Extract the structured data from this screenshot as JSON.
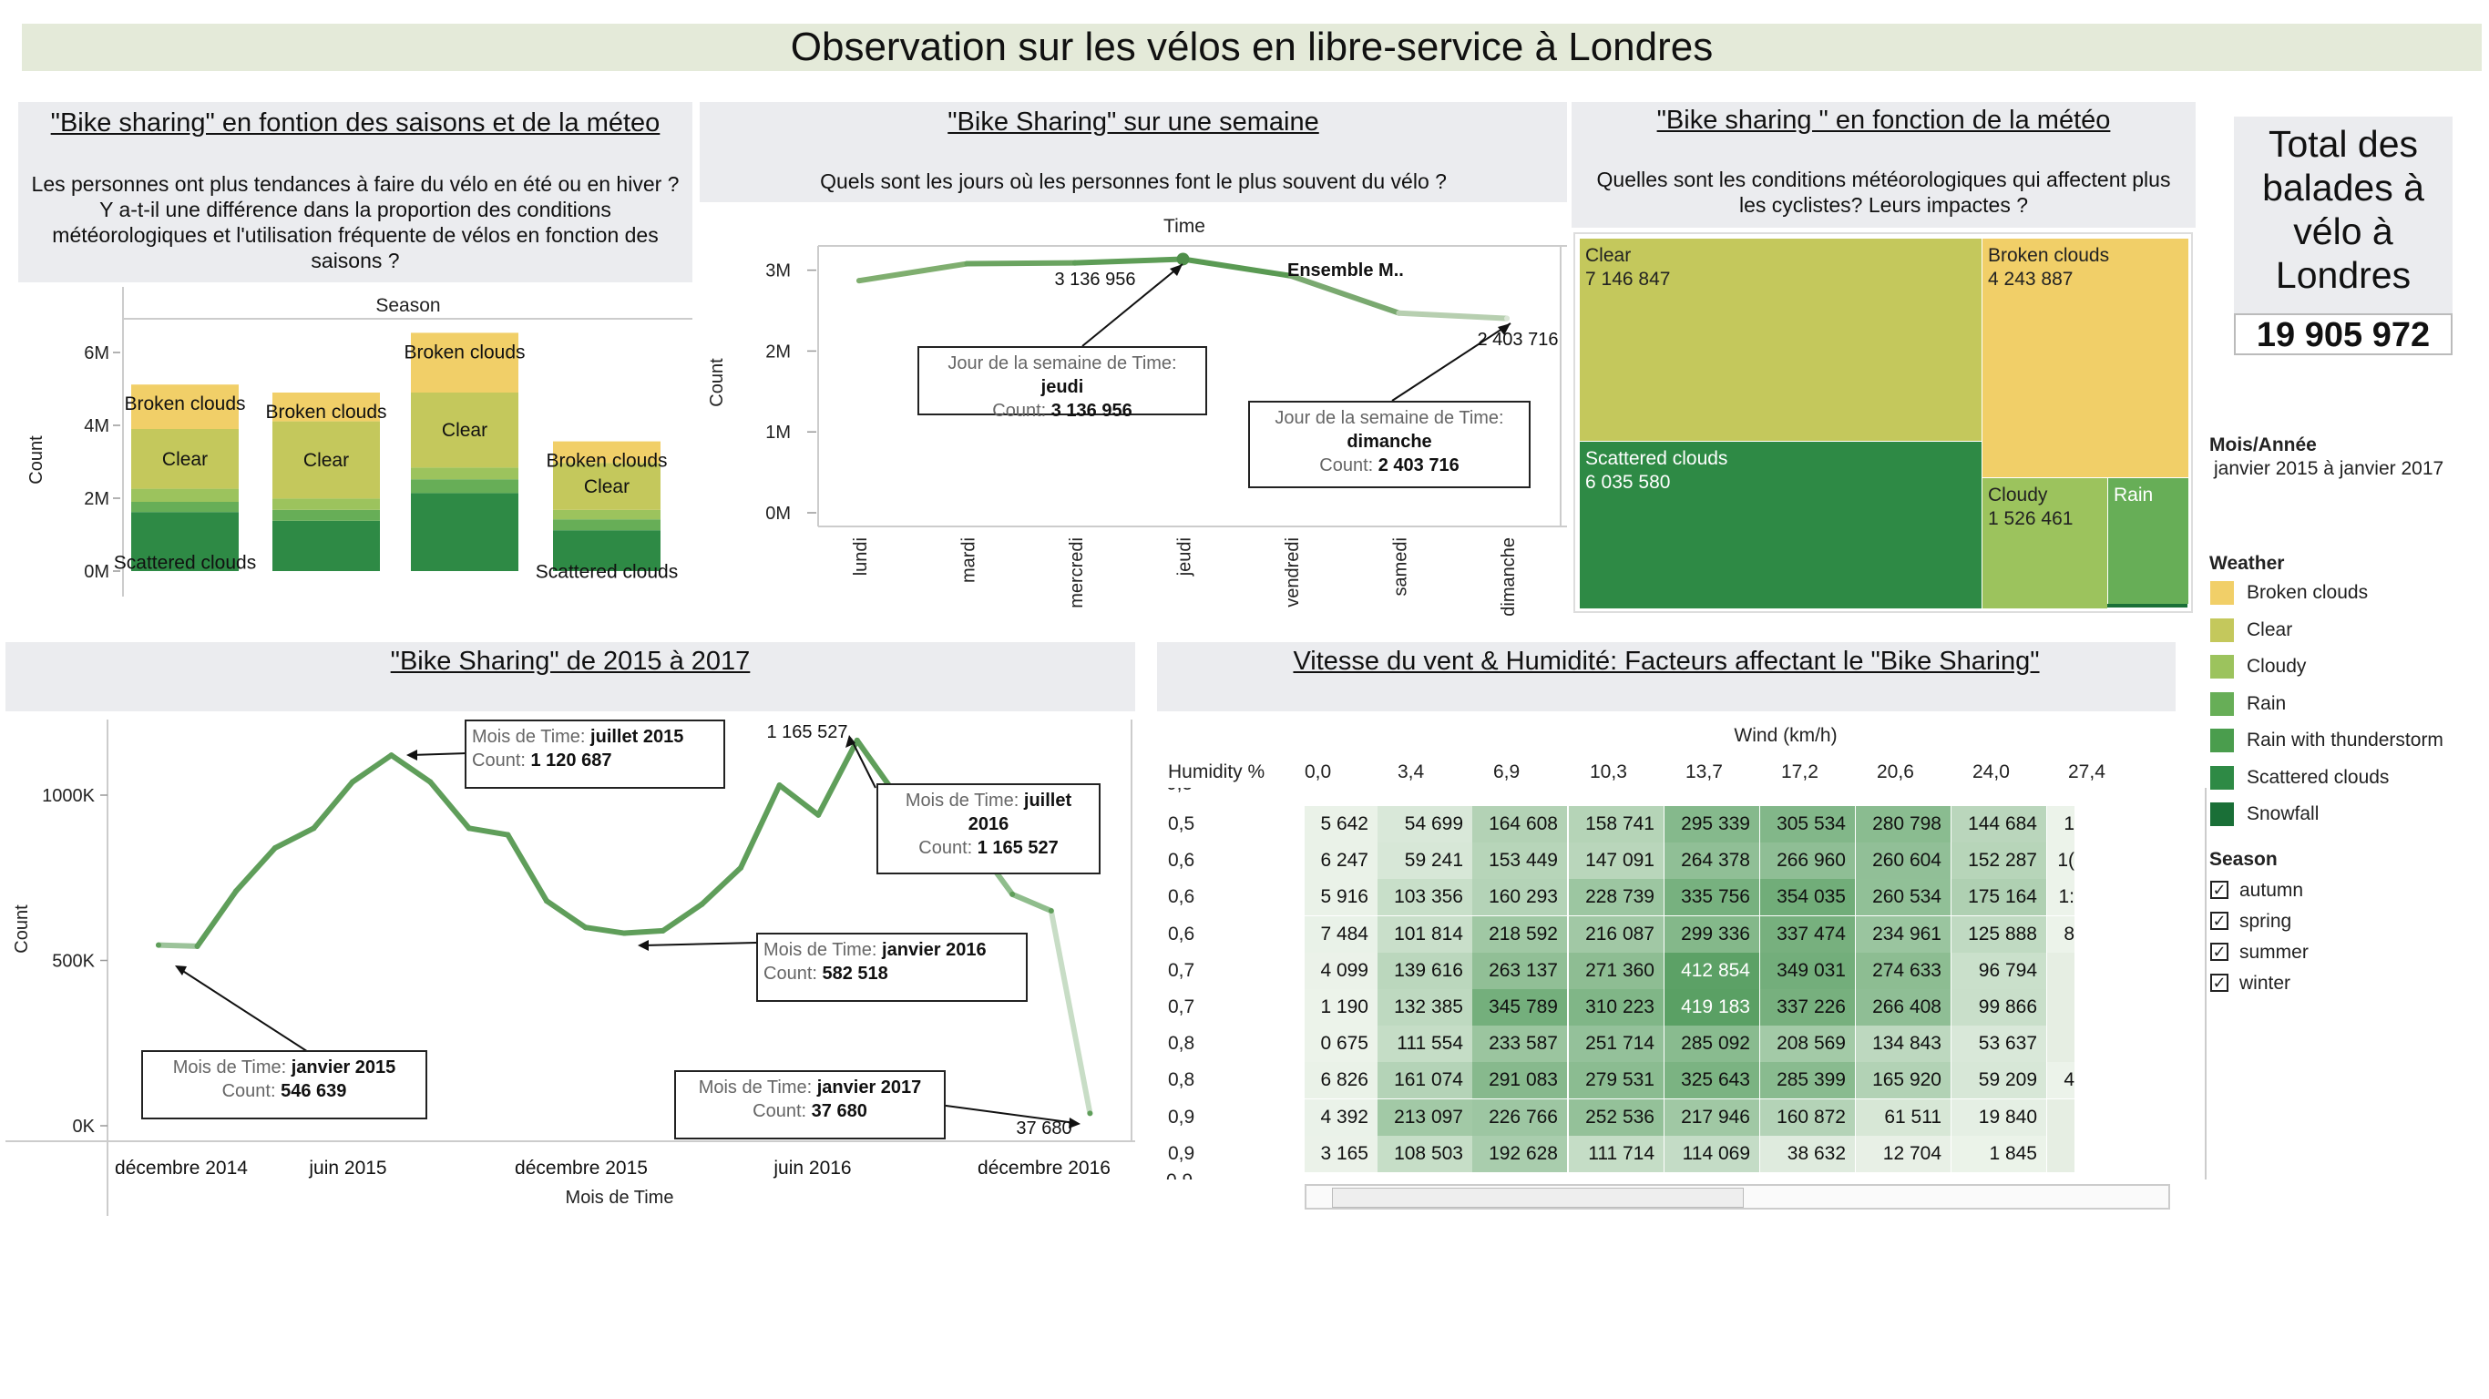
{
  "page_title": "Observation sur les vélos en libre-service à Londres",
  "season_panel": {
    "title": "\"Bike sharing\" en fontion des saisons et de la méteo",
    "question": "Les personnes ont plus tendances à faire du vélo en été ou en hiver ? Y a-t-il une différence dans la proportion des conditions météorologiques et l'utilisation fréquente de vélos en fonction des saisons ?",
    "header": "Season",
    "ylabel": "Count",
    "yticks": [
      "6M",
      "4M",
      "2M",
      "0M"
    ]
  },
  "week_panel": {
    "title": "\"Bike Sharing\" sur une semaine",
    "question": "Quels sont les jours où les personnes font le plus souvent du vélo ?",
    "header": "Time",
    "ylabel": "Count",
    "yticks": [
      "3M",
      "2M",
      "1M",
      "0M"
    ],
    "peak_label": "3 136 956",
    "end_label": "2 403 716",
    "ensemble_label": "Ensemble M..",
    "tip1": {
      "line1": "Jour de la semaine de Time: ",
      "day": "jeudi",
      "line2": "Count: ",
      "value": "3 136 956"
    },
    "tip2": {
      "line1": "Jour de la semaine de Time:",
      "day": "dimanche",
      "line2": "Count: ",
      "value": "2 403 716"
    }
  },
  "weather_panel": {
    "title": "\"Bike sharing \" en fonction de la météo",
    "question": "Quelles sont les conditions météorologiques qui affectent plus les cyclistes? Leurs impactes ?",
    "cells": [
      {
        "label": "Clear",
        "value": "7 146 847"
      },
      {
        "label": "Broken clouds",
        "value": "4 243 887"
      },
      {
        "label": "Scattered clouds",
        "value": "6 035 580"
      },
      {
        "label": "Cloudy",
        "value": "1 526 461"
      },
      {
        "label": "Rain",
        "value": ""
      }
    ]
  },
  "total_panel": {
    "title": "Total des balades à vélo à Londres",
    "value": "19 905 972"
  },
  "filters": {
    "period_title": "Mois/Année",
    "period_value": "janvier 2015 à janvier 2017",
    "weather_title": "Weather",
    "season_title": "Season",
    "seasons": [
      "autumn",
      "spring",
      "summer",
      "winter"
    ],
    "check": "✓"
  },
  "legend": [
    {
      "label": "Broken clouds",
      "color": "#f1cf68"
    },
    {
      "label": "Clear",
      "color": "#c4c85c"
    },
    {
      "label": "Cloudy",
      "color": "#9cc35d"
    },
    {
      "label": "Rain",
      "color": "#67ae57"
    },
    {
      "label": "Rain with thunderstorm",
      "color": "#4a9d4d"
    },
    {
      "label": "Scattered clouds",
      "color": "#2e8a45"
    },
    {
      "label": "Snowfall",
      "color": "#1a6f37"
    }
  ],
  "timeline_panel": {
    "title": "\"Bike Sharing\" de 2015 à 2017",
    "ylabel": "Count",
    "xlabel": "Mois de Time",
    "yticks": [
      "1000K",
      "500K",
      "0K"
    ],
    "xticks": [
      "décembre 2014",
      "juin 2015",
      "décembre 2015",
      "juin 2016",
      "décembre 2016"
    ],
    "peak_label": "1 165 527",
    "end_label": "37 680",
    "tips": [
      {
        "prefix": "Mois de Time: ",
        "month": "juillet 2015",
        "count_prefix": "Count: ",
        "value": "1 120 687"
      },
      {
        "prefix": "Mois de Time: ",
        "month": "juillet 2016",
        "count_prefix": "Count: ",
        "value": "1 165 527"
      },
      {
        "prefix": "Mois de Time: ",
        "month": "janvier 2016",
        "count_prefix": "Count: ",
        "value": "582 518"
      },
      {
        "prefix": "Mois de Time: ",
        "month": "janvier 2015",
        "count_prefix": "Count: ",
        "value": "546 639"
      },
      {
        "prefix": "Mois de Time: ",
        "month": "janvier 2017",
        "count_prefix": "Count: ",
        "value": "37 680"
      }
    ]
  },
  "heatmap_panel": {
    "title": "Vitesse du vent & Humidité: Facteurs affectant le \"Bike Sharing\"",
    "xheader": "Wind (km/h)",
    "yheader": "Humidity %",
    "columns": [
      "0,0",
      "3,4",
      "6,9",
      "10,3",
      "13,7",
      "17,2",
      "20,6",
      "24,0",
      "27,4"
    ],
    "top_partial": "0,5",
    "bottom_partial": "0,9",
    "rows": [
      {
        "h": "0,5",
        "v": [
          "5 642",
          "54 699",
          "164 608",
          "158 741",
          "295 339",
          "305 534",
          "280 798",
          "144 684",
          "1"
        ]
      },
      {
        "h": "0,6",
        "v": [
          "6 247",
          "59 241",
          "153 449",
          "147 091",
          "264 378",
          "266 960",
          "260 604",
          "152 287",
          "1("
        ]
      },
      {
        "h": "0,6",
        "v": [
          "5 916",
          "103 356",
          "160 293",
          "228 739",
          "335 756",
          "354 035",
          "260 534",
          "175 164",
          "1:"
        ]
      },
      {
        "h": "0,6",
        "v": [
          "7 484",
          "101 814",
          "218 592",
          "216 087",
          "299 336",
          "337 474",
          "234 961",
          "125 888",
          "8"
        ]
      },
      {
        "h": "0,7",
        "v": [
          "4 099",
          "139 616",
          "263 137",
          "271 360",
          "412 854",
          "349 031",
          "274 633",
          "96 794",
          ""
        ]
      },
      {
        "h": "0,7",
        "v": [
          "1 190",
          "132 385",
          "345 789",
          "310 223",
          "419 183",
          "337 226",
          "266 408",
          "99 866",
          ""
        ]
      },
      {
        "h": "0,8",
        "v": [
          "0 675",
          "111 554",
          "233 587",
          "251 714",
          "285 092",
          "208 569",
          "134 843",
          "53 637",
          ""
        ]
      },
      {
        "h": "0,8",
        "v": [
          "6 826",
          "161 074",
          "291 083",
          "279 531",
          "325 643",
          "285 399",
          "165 920",
          "59 209",
          "4"
        ]
      },
      {
        "h": "0,9",
        "v": [
          "4 392",
          "213 097",
          "226 766",
          "252 536",
          "217 946",
          "160 872",
          "61 511",
          "19 840",
          ""
        ]
      },
      {
        "h": "0,9",
        "v": [
          "3 165",
          "108 503",
          "192 628",
          "111 714",
          "114 069",
          "38 632",
          "12 704",
          "1 845",
          ""
        ]
      }
    ]
  },
  "chart_data": [
    {
      "type": "bar",
      "title": "\"Bike sharing\" en fontion des saisons et de la méteo",
      "categories": [
        "autumn",
        "spring",
        "summer",
        "winter"
      ],
      "ylabel": "Count",
      "ylim": [
        0,
        6800000
      ],
      "series": [
        {
          "name": "Scattered clouds",
          "values": [
            1620000,
            1380000,
            2140000,
            1120000
          ]
        },
        {
          "name": "Rain",
          "values": [
            280000,
            300000,
            380000,
            300000
          ]
        },
        {
          "name": "Cloudy",
          "values": [
            360000,
            310000,
            320000,
            260000
          ]
        },
        {
          "name": "Clear",
          "values": [
            1640000,
            2120000,
            2060000,
            1290000
          ]
        },
        {
          "name": "Broken clouds",
          "values": [
            1220000,
            790000,
            1640000,
            590000
          ]
        }
      ]
    },
    {
      "type": "line",
      "title": "\"Bike Sharing\" sur une semaine",
      "categories": [
        "lundi",
        "mardi",
        "mercredi",
        "jeudi",
        "vendredi",
        "samedi",
        "dimanche"
      ],
      "values": [
        2870000,
        3080000,
        3090000,
        3136956,
        2930000,
        2470000,
        2403716
      ],
      "ylabel": "Count",
      "ylim": [
        0,
        3300000
      ]
    },
    {
      "type": "line",
      "title": "\"Bike Sharing\" de 2015 à 2017",
      "x": [
        "janvier 2015",
        "février 2015",
        "mars 2015",
        "avril 2015",
        "mai 2015",
        "juin 2015",
        "juillet 2015",
        "août 2015",
        "septembre 2015",
        "octobre 2015",
        "novembre 2015",
        "décembre 2015",
        "janvier 2016",
        "février 2016",
        "mars 2016",
        "avril 2016",
        "mai 2016",
        "juin 2016",
        "juillet 2016",
        "août 2016",
        "septembre 2016",
        "octobre 2016",
        "novembre 2016",
        "décembre 2016",
        "janvier 2017"
      ],
      "values": [
        546639,
        543000,
        710000,
        840000,
        900000,
        1040000,
        1120687,
        1040000,
        900000,
        880000,
        680000,
        600000,
        582518,
        590000,
        670000,
        780000,
        1030000,
        940000,
        1165527,
        1000000,
        960000,
        860000,
        700000,
        650000,
        37680
      ],
      "xlabel": "Mois de Time",
      "ylabel": "Count",
      "ylim": [
        0,
        1250000
      ]
    }
  ]
}
